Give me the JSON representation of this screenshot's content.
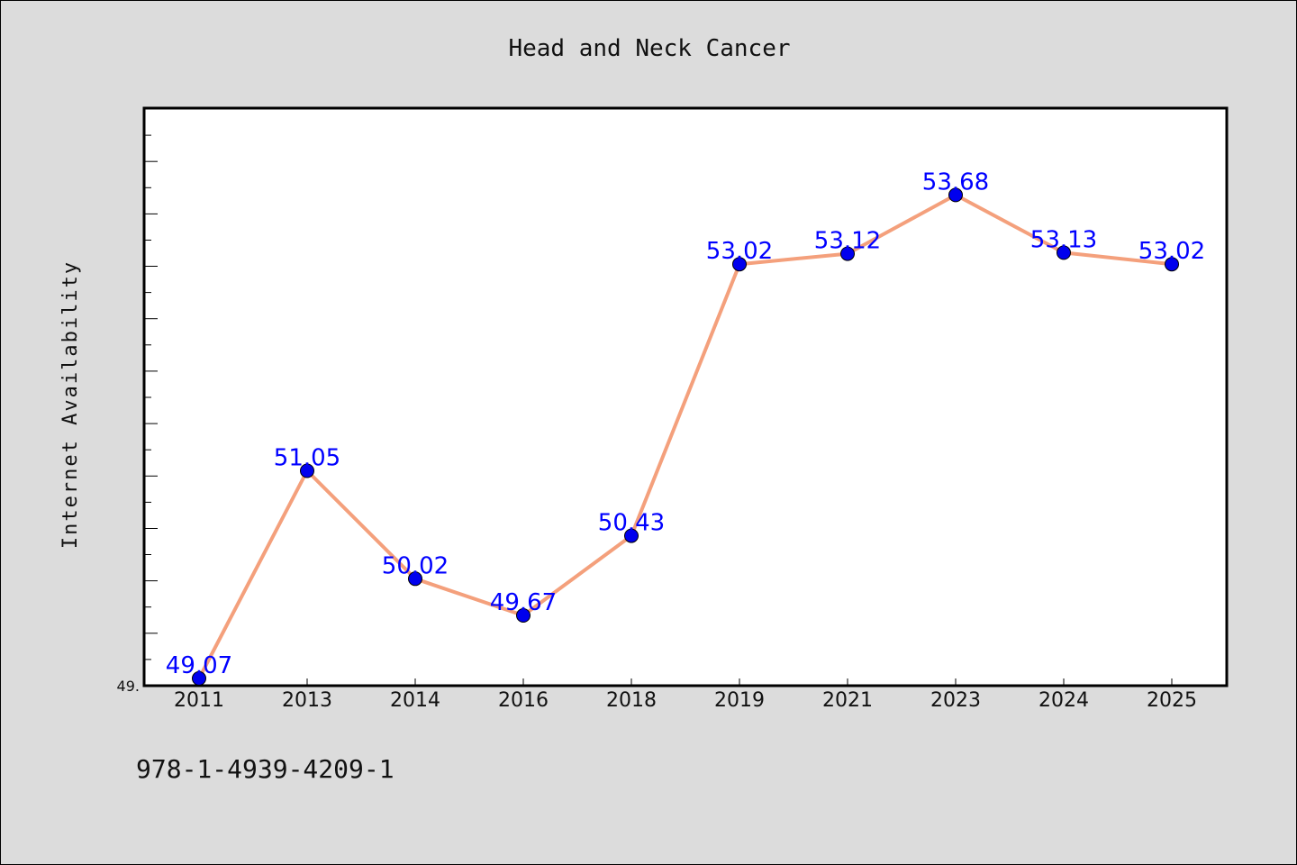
{
  "chart_data": {
    "type": "line",
    "title": "Head and Neck Cancer",
    "xlabel": "",
    "ylabel": "Internet Availability",
    "categories": [
      "2011",
      "2013",
      "2014",
      "2016",
      "2018",
      "2019",
      "2021",
      "2023",
      "2024",
      "2025"
    ],
    "series": [
      {
        "values": [
          49.07,
          51.05,
          50.02,
          49.67,
          50.43,
          53.02,
          53.12,
          53.68,
          53.13,
          53.02
        ],
        "data_labels": [
          "49.07",
          "51.05",
          "50.02",
          "49.67",
          "50.43",
          "53.02",
          "53.12",
          "53.68",
          "53.13",
          "53.02"
        ]
      }
    ],
    "ylim": [
      49.0,
      54.5
    ],
    "ytick_labels": [
      "49."
    ],
    "grid": false,
    "legend": "none",
    "colors": {
      "line": "#f4a07c",
      "marker": "#0000ee",
      "data_label": "#0000ff",
      "background": "#dcdcdc",
      "plot_background": "#ffffff"
    }
  },
  "footer": {
    "isbn": "978-1-4939-4209-1"
  }
}
